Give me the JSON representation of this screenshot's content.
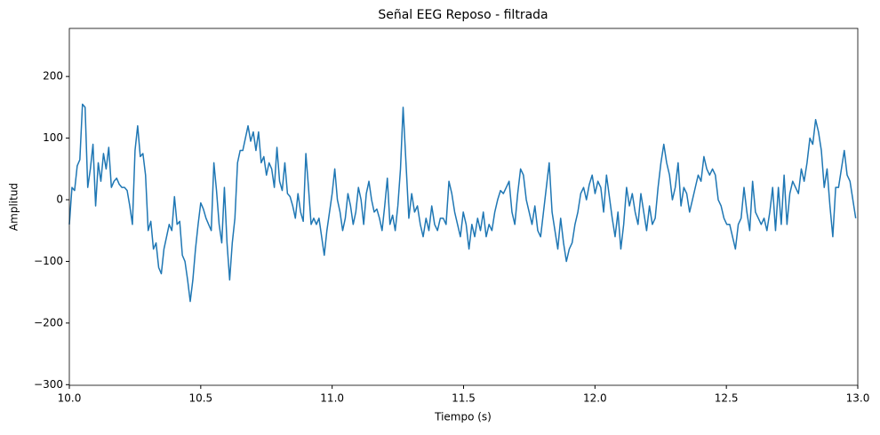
{
  "chart_data": {
    "type": "line",
    "title": "Señal EEG Reposo - filtrada",
    "xlabel": "Tiempo (s)",
    "ylabel": "Amplitud",
    "color": "#1f77b4",
    "xlim": [
      10,
      13
    ],
    "ylim": [
      -301,
      278
    ],
    "xticks": [
      {
        "value": 10,
        "label": "10.0"
      },
      10.5,
      {
        "value": 11,
        "label": "11.0"
      },
      11.5,
      {
        "value": 12,
        "label": "12.0"
      },
      12.5,
      {
        "value": 13,
        "label": "13.0"
      }
    ],
    "yticks": [
      {
        "value": -300,
        "label": "−300"
      },
      {
        "value": -200,
        "label": "−200"
      },
      {
        "value": -100,
        "label": "−100"
      },
      0,
      100,
      200
    ],
    "x": [
      10,
      10.01,
      10.02,
      10.03,
      10.04,
      10.05,
      10.06,
      10.07,
      10.08,
      10.09,
      10.1,
      10.11,
      10.12,
      10.13,
      10.14,
      10.15,
      10.16,
      10.17,
      10.18,
      10.19,
      10.2,
      10.21,
      10.22,
      10.23,
      10.24,
      10.25,
      10.26,
      10.27,
      10.28,
      10.29,
      10.3,
      10.31,
      10.32,
      10.33,
      10.34,
      10.35,
      10.36,
      10.37,
      10.38,
      10.39,
      10.4,
      10.41,
      10.42,
      10.43,
      10.44,
      10.45,
      10.46,
      10.47,
      10.48,
      10.49,
      10.5,
      10.51,
      10.52,
      10.53,
      10.54,
      10.55,
      10.56,
      10.57,
      10.58,
      10.59,
      10.6,
      10.61,
      10.62,
      10.63,
      10.64,
      10.65,
      10.66,
      10.67,
      10.68,
      10.69,
      10.7,
      10.71,
      10.72,
      10.73,
      10.74,
      10.75,
      10.76,
      10.77,
      10.78,
      10.79,
      10.8,
      10.81,
      10.82,
      10.83,
      10.84,
      10.85,
      10.86,
      10.87,
      10.88,
      10.89,
      10.9,
      10.91,
      10.92,
      10.93,
      10.94,
      10.95,
      10.96,
      10.97,
      10.98,
      10.99,
      11,
      11.01,
      11.02,
      11.03,
      11.04,
      11.05,
      11.06,
      11.07,
      11.08,
      11.09,
      11.1,
      11.11,
      11.12,
      11.13,
      11.14,
      11.15,
      11.16,
      11.17,
      11.18,
      11.19,
      11.2,
      11.21,
      11.22,
      11.23,
      11.24,
      11.25,
      11.26,
      11.27,
      11.2809,
      11.2918,
      11.3027,
      11.3136,
      11.3245,
      11.3354,
      11.3463,
      11.3572,
      11.3681,
      11.379,
      11.3899,
      11.4008,
      11.4117,
      11.4226,
      11.4335,
      11.4444,
      11.4553,
      11.4662,
      11.4771,
      11.488,
      11.4989,
      11.5098,
      11.5207,
      11.5316,
      11.5425,
      11.5534,
      11.5643,
      11.5752,
      11.5861,
      11.597,
      11.6079,
      11.6188,
      11.6297,
      11.6406,
      11.6515,
      11.6624,
      11.6733,
      11.6842,
      11.6951,
      11.706,
      11.7169,
      11.7278,
      11.7387,
      11.7496,
      11.7605,
      11.7714,
      11.7823,
      11.7932,
      11.8041,
      11.815,
      11.8259,
      11.8368,
      11.8477,
      11.8586,
      11.8695,
      11.8804,
      11.8913,
      11.9022,
      11.9131,
      11.924,
      11.9349,
      11.9458,
      11.9567,
      11.9676,
      11.9785,
      11.9894,
      12.0003,
      12.0112,
      12.0221,
      12.033,
      12.0439,
      12.0548,
      12.0657,
      12.0766,
      12.0875,
      12.0984,
      12.1093,
      12.1202,
      12.1311,
      12.142,
      12.1529,
      12.1638,
      12.1747,
      12.1856,
      12.1965,
      12.2074,
      12.2183,
      12.2292,
      12.2401,
      12.251,
      12.2619,
      12.2728,
      12.2837,
      12.2946,
      12.3055,
      12.3164,
      12.3273,
      12.3382,
      12.3491,
      12.36,
      12.3709,
      12.3818,
      12.3927,
      12.4036,
      12.4145,
      12.4254,
      12.4363,
      12.4472,
      12.4581,
      12.469,
      12.4799,
      12.4908,
      12.5017,
      12.5126,
      12.5235,
      12.5344,
      12.5453,
      12.5562,
      12.5671,
      12.578,
      12.5889,
      12.5998,
      12.6107,
      12.6216,
      12.6325,
      12.6434,
      12.6543,
      12.6652,
      12.6761,
      12.687,
      12.6979,
      12.7088,
      12.7197,
      12.7306,
      12.7415,
      12.7524,
      12.7633,
      12.7742,
      12.7851,
      12.796,
      12.8069,
      12.8178,
      12.8287,
      12.8396,
      12.8505,
      12.8614,
      12.8723,
      12.8832,
      12.8941,
      12.905,
      12.9159,
      12.9268,
      12.9377,
      12.9486,
      12.9595,
      12.9704,
      12.9813,
      12.9922
    ],
    "values": [
      -40,
      20,
      15,
      55,
      65,
      155,
      150,
      20,
      50,
      90,
      -10,
      60,
      30,
      75,
      50,
      85,
      20,
      30,
      35,
      25,
      20,
      20,
      15,
      -10,
      -40,
      80,
      120,
      70,
      75,
      40,
      -50,
      -35,
      -80,
      -70,
      -110,
      -120,
      -80,
      -60,
      -40,
      -50,
      5,
      -40,
      -35,
      -90,
      -100,
      -130,
      -165,
      -130,
      -80,
      -40,
      -5,
      -15,
      -30,
      -40,
      -50,
      60,
      15,
      -40,
      -70,
      20,
      -70,
      -130,
      -70,
      -30,
      60,
      80,
      80,
      100,
      120,
      95,
      110,
      80,
      110,
      60,
      70,
      40,
      60,
      50,
      20,
      85,
      30,
      15,
      60,
      10,
      5,
      -10,
      -30,
      10,
      -20,
      -35,
      75,
      20,
      -40,
      -30,
      -40,
      -30,
      -60,
      -90,
      -50,
      -20,
      10,
      50,
      0,
      -20,
      -50,
      -30,
      10,
      -10,
      -40,
      -20,
      20,
      0,
      -40,
      10,
      30,
      0,
      -20,
      -15,
      -30,
      -50,
      -10,
      35,
      -40,
      -25,
      -50,
      -10,
      50,
      150,
      60,
      -30,
      10,
      -20,
      -10,
      -40,
      -60,
      -30,
      -50,
      -10,
      -40,
      -50,
      -30,
      -30,
      -40,
      30,
      10,
      -20,
      -40,
      -60,
      -20,
      -40,
      -80,
      -40,
      -60,
      -30,
      -50,
      -20,
      -60,
      -40,
      -50,
      -20,
      0,
      15,
      10,
      20,
      30,
      -20,
      -40,
      10,
      50,
      40,
      0,
      -20,
      -40,
      -10,
      -50,
      -60,
      -20,
      20,
      60,
      -20,
      -50,
      -80,
      -30,
      -70,
      -100,
      -80,
      -70,
      -40,
      -20,
      10,
      20,
      0,
      25,
      40,
      10,
      30,
      20,
      -20,
      40,
      5,
      -30,
      -60,
      -20,
      -80,
      -40,
      20,
      -10,
      10,
      -20,
      -40,
      10,
      -20,
      -50,
      -10,
      -40,
      -30,
      20,
      60,
      90,
      60,
      40,
      0,
      20,
      60,
      -10,
      20,
      10,
      -20,
      0,
      20,
      40,
      30,
      70,
      50,
      40,
      50,
      40,
      0,
      -10,
      -30,
      -40,
      -40,
      -60,
      -80,
      -40,
      -30,
      20,
      -20,
      -50,
      30,
      -20,
      -30,
      -40,
      -30,
      -50,
      -20,
      20,
      -50,
      20,
      -40,
      40,
      -40,
      10,
      30,
      20,
      10,
      50,
      30,
      60,
      100,
      90,
      130,
      110,
      80,
      20,
      50,
      -10,
      -60,
      20,
      20,
      50,
      80,
      40,
      30,
      0,
      -30
    ]
  }
}
